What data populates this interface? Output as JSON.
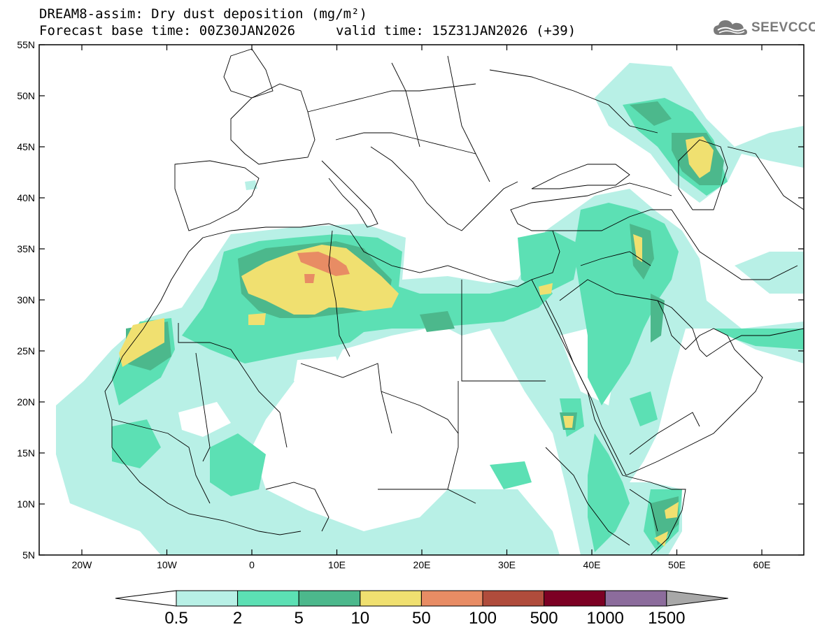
{
  "title": {
    "line1": "DREAM8-assim: Dry dust deposition (mg/m²)",
    "line2": "Forecast base time: 00Z30JAN2026",
    "valid": "valid time: 15Z31JAN2026 (+39)"
  },
  "logo": {
    "text": "SEEVCCC",
    "icon": "cloud-icon"
  },
  "map": {
    "lat_labels": [
      "55N",
      "50N",
      "45N",
      "40N",
      "35N",
      "30N",
      "25N",
      "20N",
      "15N",
      "10N",
      "5N"
    ],
    "lon_labels": [
      "20W",
      "10W",
      "0",
      "10E",
      "20E",
      "30E",
      "40E",
      "50E",
      "60E"
    ]
  },
  "colorbar": {
    "labels": [
      "0.5",
      "2",
      "5",
      "10",
      "50",
      "100",
      "500",
      "1000",
      "1500"
    ],
    "colors": [
      "#b8f0e6",
      "#5ce0b4",
      "#4cb88c",
      "#f0e070",
      "#e88c64",
      "#b04c3c",
      "#7c0024",
      "#8c6c9c"
    ],
    "under_color": "#ffffff",
    "over_color": "#a8a8a8"
  }
}
